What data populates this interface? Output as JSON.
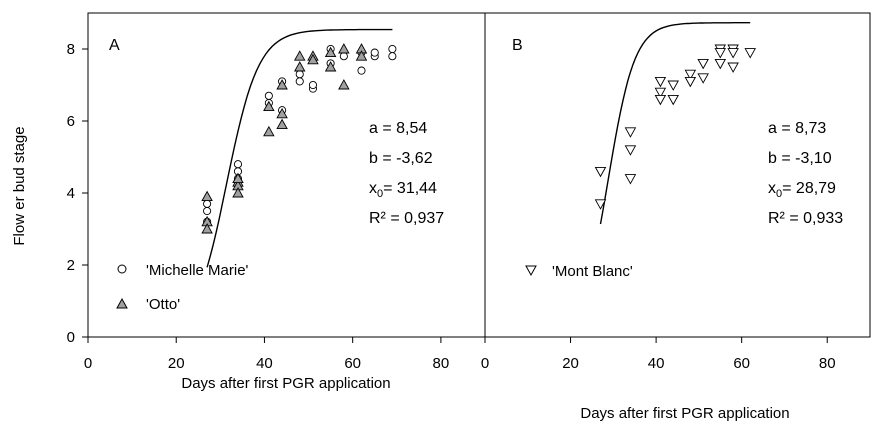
{
  "chart_data": {
    "type": "scatter",
    "ylabel": "Flow er bud stage",
    "ylim": [
      0,
      9
    ],
    "yticks": [
      0,
      2,
      4,
      6,
      8
    ],
    "panels": [
      {
        "label": "A",
        "xlabel": "Days after first PGR application",
        "xlim": [
          0,
          90
        ],
        "xticks": [
          0,
          20,
          40,
          60,
          80
        ],
        "series": [
          {
            "name": "'Michelle Marie'",
            "marker": "open-circle",
            "x": [
              27,
              27,
              27,
              34,
              34,
              34,
              41,
              41,
              44,
              44,
              48,
              48,
              51,
              51,
              55,
              55,
              58,
              62,
              62,
              65,
              65,
              69,
              69
            ],
            "y": [
              3.5,
              3.2,
              3.7,
              4.8,
              4.6,
              4.4,
              6.7,
              6.5,
              7.1,
              6.3,
              7.3,
              7.1,
              6.9,
              7.0,
              8.0,
              7.6,
              7.8,
              7.4,
              7.9,
              7.8,
              7.9,
              7.8,
              8.0
            ]
          },
          {
            "name": "'Otto'",
            "marker": "filled-triangle",
            "x": [
              27,
              27,
              27,
              34,
              34,
              34,
              34,
              41,
              41,
              44,
              44,
              44,
              48,
              48,
              51,
              51,
              55,
              55,
              58,
              58,
              62,
              62
            ],
            "y": [
              3.9,
              3.2,
              3.0,
              4.3,
              4.2,
              4.0,
              4.4,
              6.4,
              5.7,
              7.0,
              6.2,
              5.9,
              7.8,
              7.5,
              7.8,
              7.7,
              7.9,
              7.5,
              8.0,
              7.0,
              8.0,
              7.8
            ]
          }
        ],
        "fit_x_range": [
          27,
          69
        ],
        "stats": {
          "a": "a = 8,54",
          "b": "b = -3,62",
          "x0_prefix": "x",
          "x0_sub": "0",
          "x0_value": "= 31,44",
          "r2": "R² = 0,937"
        },
        "fit": {
          "a": 8.54,
          "b": -3.62,
          "x0": 31.44
        }
      },
      {
        "label": "B",
        "xlabel": "Days after first PGR application",
        "xlim": [
          0,
          90
        ],
        "xticks": [
          0,
          20,
          40,
          60,
          80
        ],
        "series": [
          {
            "name": "'Mont Blanc'",
            "marker": "open-triangle-down",
            "x": [
              27,
              27,
              34,
              34,
              34,
              41,
              41,
              41,
              44,
              44,
              48,
              48,
              51,
              51,
              55,
              55,
              55,
              58,
              58,
              58,
              62
            ],
            "y": [
              4.6,
              3.7,
              5.7,
              5.2,
              4.4,
              7.1,
              6.8,
              6.6,
              7.0,
              6.6,
              7.3,
              7.1,
              7.6,
              7.2,
              8.0,
              7.9,
              7.6,
              8.0,
              7.9,
              7.5,
              7.9
            ]
          }
        ],
        "fit_x_range": [
          27,
          62
        ],
        "stats": {
          "a": "a = 8,73",
          "b": "b = -3,10",
          "x0_prefix": "x",
          "x0_sub": "0",
          "x0_value": "= 28,79",
          "r2": "R² = 0,933"
        },
        "fit": {
          "a": 8.73,
          "b": -3.1,
          "x0": 28.79
        }
      }
    ]
  }
}
